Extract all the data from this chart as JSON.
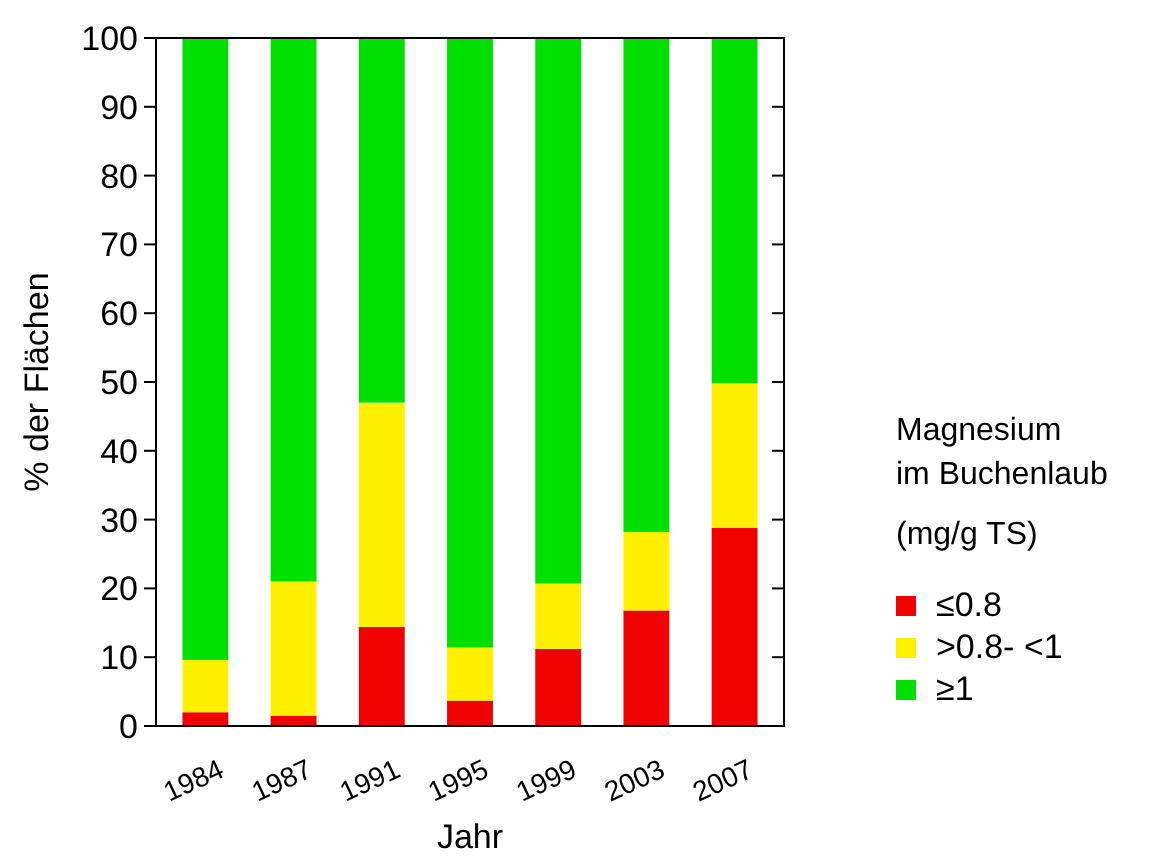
{
  "chart_data": {
    "type": "bar",
    "stacked": true,
    "xlabel": "Jahr",
    "ylabel": "% der Flächen",
    "legend_title": "Magnesium\nim Buchenlaub\n(mg/g TS)",
    "legend": "right",
    "grid": false,
    "categories": [
      "1984",
      "1987",
      "1991",
      "1995",
      "1999",
      "2003",
      "2007"
    ],
    "series": [
      {
        "name": "≤0.8",
        "color": "#f00000",
        "values": [
          2,
          1.5,
          14.4,
          3.7,
          11.2,
          16.8,
          28.8
        ]
      },
      {
        "name": ">0.8- <1",
        "color": "#fff000",
        "values": [
          7.6,
          19.5,
          32.6,
          7.7,
          9.5,
          11.4,
          21
        ]
      },
      {
        "name": "≥1",
        "color": "#00e000",
        "values": [
          90.4,
          79,
          53,
          88.6,
          79.3,
          71.8,
          50.2
        ]
      }
    ],
    "ylim": [
      0,
      100
    ],
    "yticks": [
      0,
      10,
      20,
      30,
      40,
      50,
      60,
      70,
      80,
      90,
      100
    ]
  }
}
